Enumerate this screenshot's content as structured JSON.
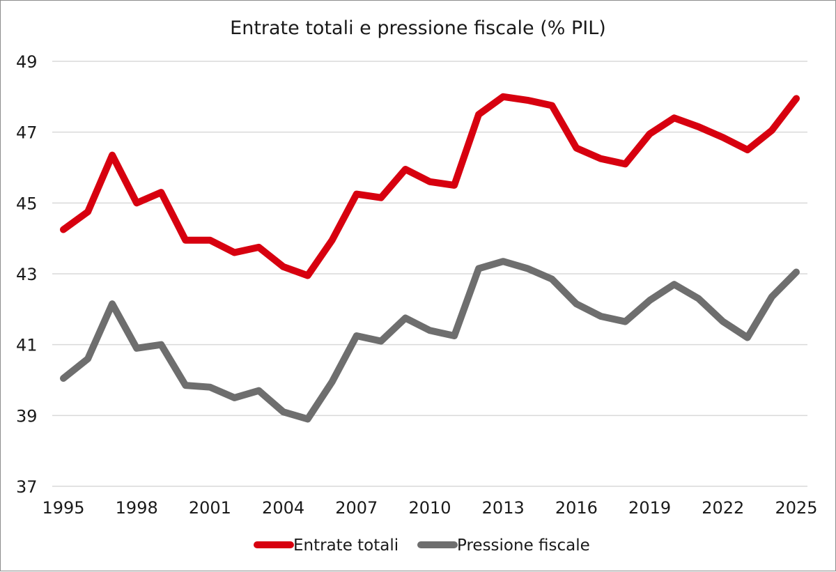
{
  "chart_data": {
    "type": "line",
    "title": "Entrate totali e pressione fiscale (% PIL)",
    "xlabel": "",
    "ylabel": "",
    "x": [
      1995,
      1996,
      1997,
      1998,
      1999,
      2000,
      2001,
      2002,
      2003,
      2004,
      2005,
      2006,
      2007,
      2008,
      2009,
      2010,
      2011,
      2012,
      2013,
      2014,
      2015,
      2016,
      2017,
      2018,
      2019,
      2020,
      2021,
      2022,
      2023,
      2024,
      2025
    ],
    "x_tick_labels": [
      "1995",
      "1998",
      "2001",
      "2004",
      "2007",
      "2010",
      "2013",
      "2016",
      "2019",
      "2022",
      "2025"
    ],
    "x_tick_values": [
      1995,
      1998,
      2001,
      2004,
      2007,
      2010,
      2013,
      2016,
      2019,
      2022,
      2025
    ],
    "ylim": [
      37,
      49
    ],
    "y_ticks": [
      37,
      39,
      41,
      43,
      45,
      47,
      49
    ],
    "grid": true,
    "legend_position": "bottom-center",
    "series": [
      {
        "name": "Entrate totali",
        "color": "#d7000f",
        "values": [
          44.25,
          44.75,
          46.35,
          45.0,
          45.3,
          43.95,
          43.95,
          43.6,
          43.75,
          43.2,
          42.95,
          43.95,
          45.25,
          45.15,
          45.95,
          45.6,
          45.5,
          47.5,
          48.0,
          47.9,
          47.75,
          46.55,
          46.25,
          46.1,
          46.95,
          47.4,
          47.15,
          46.85,
          46.5,
          47.05,
          47.95
        ]
      },
      {
        "name": "Pressione fiscale",
        "color": "#6e6e6e",
        "values": [
          40.05,
          40.6,
          42.15,
          40.9,
          41.0,
          39.85,
          39.8,
          39.5,
          39.7,
          39.1,
          38.9,
          39.95,
          41.25,
          41.1,
          41.75,
          41.4,
          41.25,
          43.15,
          43.35,
          43.15,
          42.85,
          42.15,
          41.8,
          41.65,
          42.25,
          42.7,
          42.3,
          41.65,
          41.2,
          42.35,
          43.05
        ]
      }
    ]
  }
}
